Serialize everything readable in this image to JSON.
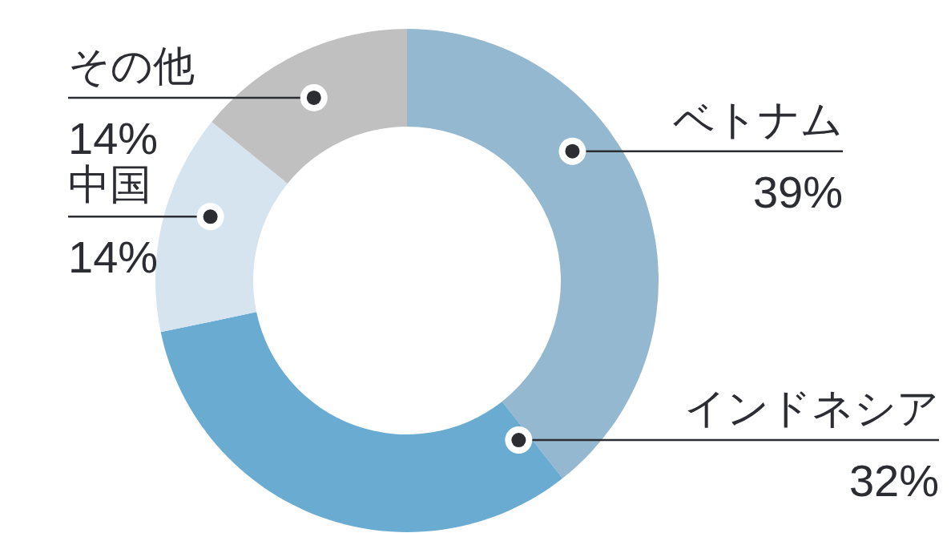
{
  "chart_data": {
    "type": "donut",
    "categories": [
      "ベトナム",
      "インドネシア",
      "中国",
      "その他"
    ],
    "values": [
      39,
      32,
      14,
      14
    ],
    "value_labels": [
      "39%",
      "32%",
      "14%",
      "14%"
    ],
    "colors": [
      "#94b8cf",
      "#6aabd2",
      "#d6e4f0",
      "#c0c0c0"
    ]
  }
}
